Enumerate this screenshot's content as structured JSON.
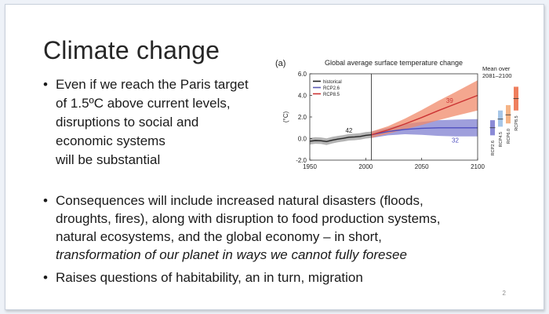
{
  "slide": {
    "title": "Climate change",
    "page_number": "2",
    "bullet1_lines": [
      "Even if we reach the Paris target",
      "of 1.5ºC above current levels,",
      "disruptions to social and",
      "economic systems",
      "will be substantial"
    ],
    "bullet2_lines": [
      "Consequences will include increased natural disasters (floods,",
      "droughts, fires), along with disruption to food production systems,",
      "natural ecosystems, and the global economy – in short,"
    ],
    "bullet2_italic": "transformation of our planet in ways we cannot fully foresee",
    "bullet3": "Raises questions of habitability, an in turn, migration"
  },
  "chart_data": {
    "type": "line",
    "panel_label": "(a)",
    "title": "Global average surface temperature change",
    "ylabel": "(°C)",
    "ylim": [
      -2.0,
      6.0
    ],
    "xlim": [
      1950,
      2100
    ],
    "x_ticks": [
      1950,
      2000,
      2050,
      2100
    ],
    "y_ticks": [
      "6.0",
      "4.0",
      "2.0",
      "0.0",
      "-2.0"
    ],
    "divider_year": 2005,
    "legend": [
      {
        "name": "historical",
        "color": "#222222"
      },
      {
        "name": "RCP2.6",
        "color": "#5b5bb5"
      },
      {
        "name": "RCP8.5",
        "color": "#cc3333"
      }
    ],
    "annotations": [
      {
        "text": "42",
        "x": 1985,
        "y": 0.55,
        "color": "#222222"
      },
      {
        "text": "39",
        "x": 2075,
        "y": 3.3,
        "color": "#cc3333"
      },
      {
        "text": "32",
        "x": 2080,
        "y": -0.35,
        "color": "#4d4dbf"
      }
    ],
    "series": [
      {
        "name": "historical",
        "color": "#222222",
        "band_color": "#9a9a9a",
        "x": [
          1950,
          1955,
          1960,
          1965,
          1970,
          1975,
          1980,
          1985,
          1990,
          1995,
          2000,
          2005
        ],
        "y": [
          -0.25,
          -0.18,
          -0.2,
          -0.28,
          -0.15,
          -0.05,
          0.02,
          0.12,
          0.15,
          0.2,
          0.3,
          0.35
        ],
        "lower": [
          -0.55,
          -0.48,
          -0.5,
          -0.6,
          -0.45,
          -0.35,
          -0.28,
          -0.18,
          -0.15,
          -0.1,
          0.0,
          0.05
        ],
        "upper": [
          0.05,
          0.12,
          0.1,
          0.02,
          0.15,
          0.25,
          0.32,
          0.42,
          0.45,
          0.5,
          0.6,
          0.65
        ]
      },
      {
        "name": "RCP2.6",
        "color": "#4d4dbf",
        "band_color": "#7f7fd0",
        "x": [
          2005,
          2020,
          2035,
          2050,
          2065,
          2080,
          2100
        ],
        "y": [
          0.35,
          0.65,
          0.85,
          0.95,
          1.0,
          1.0,
          1.0
        ],
        "lower": [
          0.05,
          0.3,
          0.4,
          0.35,
          0.25,
          0.2,
          0.2
        ],
        "upper": [
          0.65,
          1.0,
          1.35,
          1.55,
          1.7,
          1.75,
          1.8
        ]
      },
      {
        "name": "RCP8.5",
        "color": "#cc3333",
        "band_color": "#f08a6a",
        "x": [
          2005,
          2020,
          2035,
          2050,
          2065,
          2080,
          2100
        ],
        "y": [
          0.35,
          0.8,
          1.35,
          1.95,
          2.6,
          3.2,
          4.0
        ],
        "lower": [
          0.05,
          0.45,
          0.85,
          1.25,
          1.7,
          2.1,
          2.6
        ],
        "upper": [
          0.65,
          1.15,
          1.85,
          2.65,
          3.5,
          4.3,
          5.4
        ]
      }
    ],
    "mean_panel": {
      "title_lines": [
        "Mean over",
        "2081–2100"
      ],
      "bars": [
        {
          "label": "RCP2.6",
          "low": 0.3,
          "high": 1.7,
          "mid": 1.0,
          "color": "#8b8bd6"
        },
        {
          "label": "RCP4.5",
          "low": 1.1,
          "high": 2.6,
          "mid": 1.8,
          "color": "#a6c6e8"
        },
        {
          "label": "RCP6.0",
          "low": 1.4,
          "high": 3.1,
          "mid": 2.2,
          "color": "#f5b486"
        },
        {
          "label": "RCP8.5",
          "low": 2.6,
          "high": 4.8,
          "mid": 3.7,
          "color": "#ef7f5e"
        }
      ]
    }
  }
}
